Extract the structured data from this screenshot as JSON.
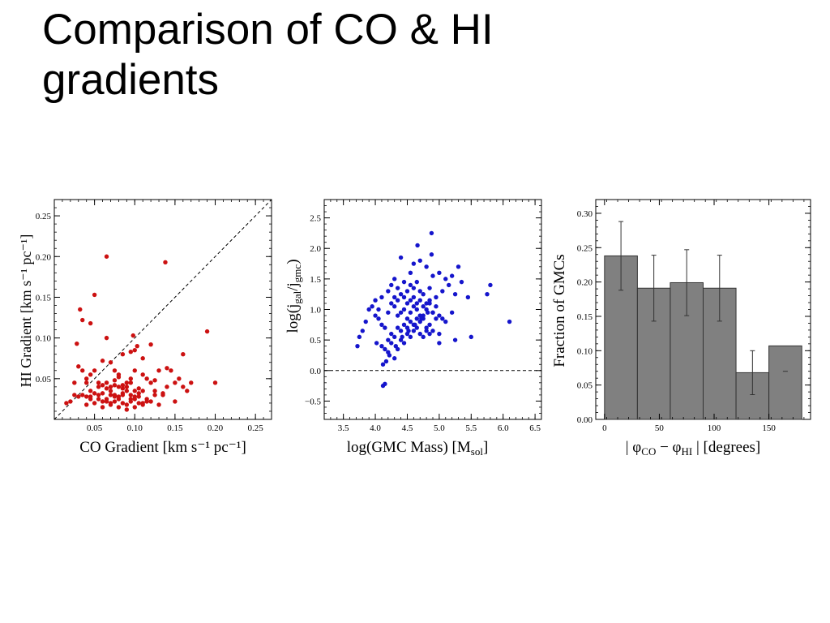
{
  "slide": {
    "title_line1": "Comparison of CO & HI",
    "title_line2": "gradients"
  },
  "chart_data": [
    {
      "type": "scatter",
      "title": "",
      "xlabel": "CO Gradient [km s⁻¹ pc⁻¹]",
      "ylabel": "HI Gradient [km s⁻¹ pc⁻¹]",
      "xlim": [
        0.0,
        0.27
      ],
      "ylim": [
        0.0,
        0.27
      ],
      "xticks": [
        0.05,
        0.1,
        0.15,
        0.2,
        0.25
      ],
      "xtick_labels": [
        "0.05",
        "0.10",
        "0.15",
        "0.20",
        "0.25"
      ],
      "yticks": [
        0.05,
        0.1,
        0.15,
        0.2,
        0.25
      ],
      "ytick_labels": [
        "0.05",
        "0.10",
        "0.15",
        "0.20",
        "0.25"
      ],
      "marker_color": "#cc1111",
      "reference_line": {
        "style": "dashed",
        "from": [
          0.0,
          0.0
        ],
        "to": [
          0.27,
          0.27
        ]
      },
      "grid": false,
      "series": [
        {
          "x": [
            0.065,
            0.138,
            0.05,
            0.032,
            0.035,
            0.045,
            0.028,
            0.065,
            0.098,
            0.19,
            0.103,
            0.095,
            0.085,
            0.12,
            0.07,
            0.06,
            0.1,
            0.11,
            0.16,
            0.17,
            0.14,
            0.2,
            0.1,
            0.075,
            0.08,
            0.03,
            0.02,
            0.015,
            0.025,
            0.04,
            0.055,
            0.06,
            0.065,
            0.07,
            0.075,
            0.08,
            0.085,
            0.09,
            0.095,
            0.11,
            0.115,
            0.12,
            0.125,
            0.13,
            0.145,
            0.15,
            0.155,
            0.16,
            0.045,
            0.05,
            0.035,
            0.04,
            0.045,
            0.055,
            0.06,
            0.07,
            0.075,
            0.08,
            0.085,
            0.09,
            0.095,
            0.1,
            0.105,
            0.11,
            0.115,
            0.125,
            0.135,
            0.05,
            0.06,
            0.065,
            0.07,
            0.075,
            0.08,
            0.085,
            0.09,
            0.095,
            0.1,
            0.105,
            0.11,
            0.12,
            0.14,
            0.165,
            0.025,
            0.03,
            0.04,
            0.045,
            0.05,
            0.055,
            0.065,
            0.07,
            0.075,
            0.08,
            0.085,
            0.09,
            0.095,
            0.1,
            0.105,
            0.06,
            0.07,
            0.08,
            0.09,
            0.1,
            0.11,
            0.13,
            0.15,
            0.045,
            0.055,
            0.065,
            0.075,
            0.085,
            0.095,
            0.105,
            0.115,
            0.125,
            0.135,
            0.035,
            0.04
          ],
          "y": [
            0.2,
            0.193,
            0.153,
            0.135,
            0.122,
            0.118,
            0.093,
            0.1,
            0.103,
            0.108,
            0.09,
            0.083,
            0.08,
            0.092,
            0.07,
            0.072,
            0.085,
            0.075,
            0.08,
            0.045,
            0.063,
            0.045,
            0.06,
            0.06,
            0.055,
            0.065,
            0.022,
            0.02,
            0.045,
            0.045,
            0.045,
            0.042,
            0.045,
            0.04,
            0.042,
            0.04,
            0.042,
            0.045,
            0.05,
            0.055,
            0.05,
            0.045,
            0.048,
            0.06,
            0.06,
            0.045,
            0.05,
            0.04,
            0.035,
            0.032,
            0.03,
            0.028,
            0.025,
            0.03,
            0.032,
            0.035,
            0.03,
            0.028,
            0.032,
            0.035,
            0.03,
            0.028,
            0.032,
            0.035,
            0.025,
            0.03,
            0.032,
            0.02,
            0.022,
            0.025,
            0.02,
            0.022,
            0.025,
            0.02,
            0.018,
            0.022,
            0.025,
            0.02,
            0.018,
            0.022,
            0.04,
            0.035,
            0.03,
            0.028,
            0.05,
            0.055,
            0.06,
            0.04,
            0.038,
            0.03,
            0.048,
            0.052,
            0.038,
            0.04,
            0.045,
            0.035,
            0.038,
            0.015,
            0.018,
            0.015,
            0.012,
            0.015,
            0.02,
            0.018,
            0.022,
            0.028,
            0.025,
            0.022,
            0.028,
            0.03,
            0.025,
            0.028,
            0.022,
            0.035,
            0.03,
            0.06,
            0.018
          ]
        }
      ]
    },
    {
      "type": "scatter",
      "title": "",
      "xlabel": "log(GMC Mass) [M",
      "xlabel_sub": "sol",
      "xlabel_end": "]",
      "ylabel": "log(j",
      "ylabel_sub1": "gal",
      "ylabel_mid": "/j",
      "ylabel_sub2": "gmc",
      "ylabel_end": ")",
      "xlim": [
        3.2,
        6.6
      ],
      "ylim": [
        -0.8,
        2.8
      ],
      "xticks": [
        3.5,
        4.0,
        4.5,
        5.0,
        5.5,
        6.0,
        6.5
      ],
      "xtick_labels": [
        "3.5",
        "4.0",
        "4.5",
        "5.0",
        "5.5",
        "6.0",
        "6.5"
      ],
      "yticks": [
        -0.5,
        0.0,
        0.5,
        1.0,
        1.5,
        2.0,
        2.5
      ],
      "ytick_labels": [
        "−0.5",
        "0.0",
        "0.5",
        "1.0",
        "1.5",
        "2.0",
        "2.5"
      ],
      "marker_color": "#1515cc",
      "reference_line": {
        "style": "dashed",
        "y": 0.0
      },
      "grid": false,
      "series": [
        {
          "x": [
            4.88,
            4.66,
            4.88,
            4.15,
            4.12,
            4.17,
            5.3,
            4.4,
            4.7,
            4.8,
            4.55,
            4.6,
            4.9,
            5.0,
            5.1,
            5.2,
            5.8,
            5.75,
            6.1,
            4.0,
            4.05,
            4.1,
            4.2,
            4.25,
            4.3,
            4.35,
            4.45,
            4.5,
            4.55,
            4.6,
            4.65,
            4.7,
            4.75,
            4.85,
            4.95,
            5.05,
            5.15,
            5.25,
            5.35,
            5.45,
            3.72,
            3.75,
            3.8,
            3.85,
            3.9,
            3.95,
            4.0,
            4.05,
            4.1,
            4.15,
            4.2,
            4.25,
            4.3,
            4.35,
            4.4,
            4.45,
            4.5,
            4.55,
            4.6,
            4.65,
            4.7,
            4.75,
            4.8,
            4.85,
            4.9,
            4.95,
            5.0,
            5.05,
            5.1,
            5.2,
            4.3,
            4.35,
            4.4,
            4.45,
            4.5,
            4.55,
            4.6,
            4.65,
            4.7,
            4.75,
            4.8,
            4.85,
            4.9,
            4.2,
            4.25,
            4.3,
            4.35,
            4.4,
            4.45,
            4.5,
            4.55,
            4.6,
            4.65,
            4.7,
            4.75,
            4.8,
            4.85,
            4.9,
            4.95,
            5.0,
            4.1,
            4.15,
            4.2,
            4.25,
            4.3,
            4.35,
            4.4,
            4.45,
            4.5,
            4.55,
            4.6,
            4.65,
            4.7,
            4.75,
            4.8,
            4.85,
            5.0,
            5.25,
            5.5,
            4.02,
            4.12,
            4.22,
            4.32,
            4.42,
            4.52,
            4.62,
            4.72,
            4.82
          ],
          "y": [
            2.25,
            2.05,
            1.9,
            -0.22,
            -0.25,
            0.15,
            1.7,
            1.85,
            1.8,
            1.7,
            1.6,
            1.75,
            1.55,
            1.6,
            1.5,
            1.55,
            1.4,
            1.25,
            0.8,
            1.15,
            1.0,
            1.2,
            1.3,
            1.4,
            1.5,
            1.35,
            1.45,
            1.3,
            1.4,
            1.35,
            1.45,
            1.3,
            1.25,
            1.35,
            1.2,
            1.3,
            1.4,
            1.25,
            1.45,
            1.2,
            0.4,
            0.55,
            0.65,
            0.8,
            1.0,
            1.05,
            0.9,
            0.85,
            0.75,
            0.7,
            0.95,
            1.1,
            1.05,
            0.9,
            0.95,
            1.0,
            0.85,
            0.95,
            1.05,
            1.0,
            0.9,
            0.85,
            1.1,
            1.15,
            0.95,
            1.05,
            0.9,
            0.85,
            0.8,
            0.95,
            1.2,
            1.15,
            1.25,
            1.2,
            1.1,
            1.15,
            1.2,
            1.1,
            1.15,
            1.05,
            1.0,
            1.1,
            0.95,
            0.5,
            0.6,
            0.55,
            0.7,
            0.65,
            0.75,
            0.7,
            0.8,
            0.75,
            0.85,
            0.8,
            0.9,
            0.7,
            0.75,
            0.65,
            0.85,
            0.6,
            0.4,
            0.35,
            0.3,
            0.45,
            0.2,
            0.35,
            0.5,
            0.45,
            0.6,
            0.55,
            0.65,
            0.7,
            0.6,
            0.55,
            0.65,
            0.6,
            0.45,
            0.5,
            0.55,
            0.45,
            0.1,
            0.25,
            0.4,
            0.55,
            0.65,
            0.75,
            0.85,
            0.95
          ]
        }
      ]
    },
    {
      "type": "bar",
      "title": "",
      "xlabel": "| φ",
      "xlabel_sub1": "CO",
      "xlabel_mid": " − φ",
      "xlabel_sub2": "HI",
      "xlabel_end": " |  [degrees]",
      "ylabel": "Fraction of GMCs",
      "xlim": [
        -8,
        188
      ],
      "ylim": [
        0.0,
        0.32
      ],
      "xticks": [
        0,
        50,
        100,
        150
      ],
      "xtick_labels": [
        "0",
        "50",
        "100",
        "150"
      ],
      "yticks": [
        0.0,
        0.05,
        0.1,
        0.15,
        0.2,
        0.25,
        0.3
      ],
      "ytick_labels": [
        "0.00",
        "0.05",
        "0.10",
        "0.15",
        "0.20",
        "0.25",
        "0.30"
      ],
      "bin_edges": [
        0,
        30,
        60,
        90,
        120,
        150,
        180
      ],
      "values": [
        0.238,
        0.191,
        0.199,
        0.191,
        0.068,
        0.107
      ],
      "errors": [
        0.05,
        0.048,
        0.048,
        0.048,
        0.032,
        0.0
      ],
      "bar_color": "#808080",
      "edge_color": "#333333",
      "grid": false
    }
  ]
}
